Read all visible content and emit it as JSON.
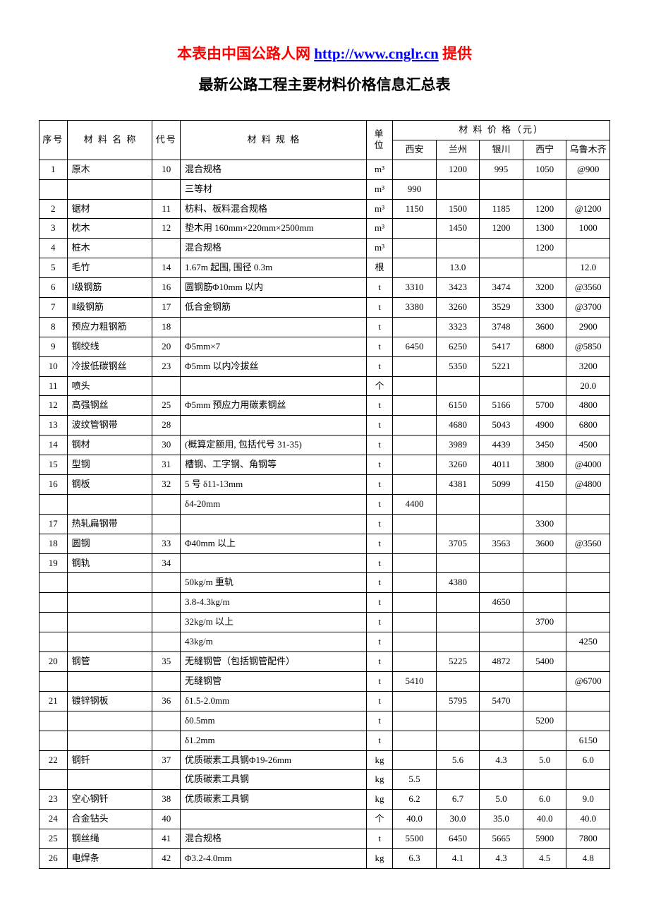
{
  "header": {
    "prefix": "本表由中国公路人网",
    "link": "http://www.cnglr.cn",
    "suffix": "提供",
    "subtitle": "最新公路工程主要材料价格信息汇总表"
  },
  "colors": {
    "title_red": "#ff0000",
    "title_link": "#0000ff",
    "text": "#000000",
    "border": "#000000",
    "background": "#ffffff"
  },
  "columns": {
    "seq": "序号",
    "name": "材 料 名 称",
    "code": "代号",
    "spec": "材 料 规 格",
    "unit": "单位",
    "price_group": "材 料 价 格（元）",
    "cities": [
      "西安",
      "兰州",
      "银川",
      "西宁",
      "乌鲁木齐"
    ]
  },
  "rows": [
    {
      "seq": "1",
      "name": "原木",
      "code": "10",
      "spec": "混合规格",
      "unit": "m³",
      "p": [
        "",
        "1200",
        "995",
        "1050",
        "@900"
      ]
    },
    {
      "seq": "",
      "name": "",
      "code": "",
      "spec": "三等材",
      "unit": "m³",
      "p": [
        "990",
        "",
        "",
        "",
        ""
      ]
    },
    {
      "seq": "2",
      "name": "锯材",
      "code": "11",
      "spec": "枋料、板料混合规格",
      "unit": "m³",
      "p": [
        "1150",
        "1500",
        "1185",
        "1200",
        "@1200"
      ]
    },
    {
      "seq": "3",
      "name": "枕木",
      "code": "12",
      "spec": "垫木用 160mm×220mm×2500mm",
      "unit": "m³",
      "p": [
        "",
        "1450",
        "1200",
        "1300",
        "1000"
      ]
    },
    {
      "seq": "4",
      "name": "桩木",
      "code": "",
      "spec": "混合规格",
      "unit": "m³",
      "p": [
        "",
        "",
        "",
        "1200",
        ""
      ]
    },
    {
      "seq": "5",
      "name": "毛竹",
      "code": "14",
      "spec": "1.67m 起围, 围径 0.3m",
      "unit": "根",
      "p": [
        "",
        "13.0",
        "",
        "",
        "12.0"
      ]
    },
    {
      "seq": "6",
      "name": "Ⅰ级钢筋",
      "code": "16",
      "spec": "圆钢筋Φ10mm 以内",
      "unit": "t",
      "p": [
        "3310",
        "3423",
        "3474",
        "3200",
        "@3560"
      ]
    },
    {
      "seq": "7",
      "name": "Ⅱ级钢筋",
      "code": "17",
      "spec": "低合金钢筋",
      "unit": "t",
      "p": [
        "3380",
        "3260",
        "3529",
        "3300",
        "@3700"
      ]
    },
    {
      "seq": "8",
      "name": "预应力粗钢筋",
      "code": "18",
      "spec": "",
      "unit": "t",
      "p": [
        "",
        "3323",
        "3748",
        "3600",
        "2900"
      ]
    },
    {
      "seq": "9",
      "name": "钢绞线",
      "code": "20",
      "spec": "Φ5mm×7",
      "unit": "t",
      "p": [
        "6450",
        "6250",
        "5417",
        "6800",
        "@5850"
      ]
    },
    {
      "seq": "10",
      "name": "冷拔低碳钢丝",
      "code": "23",
      "spec": "Φ5mm 以内冷拔丝",
      "unit": "t",
      "p": [
        "",
        "5350",
        "5221",
        "",
        "3200"
      ]
    },
    {
      "seq": "11",
      "name": "喷头",
      "code": "",
      "spec": "",
      "unit": "个",
      "p": [
        "",
        "",
        "",
        "",
        "20.0"
      ]
    },
    {
      "seq": "12",
      "name": "高强钢丝",
      "code": "25",
      "spec": "Φ5mm 预应力用碳素钢丝",
      "unit": "t",
      "p": [
        "",
        "6150",
        "5166",
        "5700",
        "4800"
      ]
    },
    {
      "seq": "13",
      "name": "波纹管钢带",
      "code": "28",
      "spec": "",
      "unit": "t",
      "p": [
        "",
        "4680",
        "5043",
        "4900",
        "6800"
      ]
    },
    {
      "seq": "14",
      "name": "钢材",
      "code": "30",
      "spec": "(概算定额用, 包括代号 31-35)",
      "unit": "t",
      "p": [
        "",
        "3989",
        "4439",
        "3450",
        "4500"
      ]
    },
    {
      "seq": "15",
      "name": "型钢",
      "code": "31",
      "spec": "槽钢、工字钢、角钢等",
      "unit": "t",
      "p": [
        "",
        "3260",
        "4011",
        "3800",
        "@4000"
      ]
    },
    {
      "seq": "16",
      "name": "钢板",
      "code": "32",
      "spec": "5 号 δ11-13mm",
      "unit": "t",
      "p": [
        "",
        "4381",
        "5099",
        "4150",
        "@4800"
      ]
    },
    {
      "seq": "",
      "name": "",
      "code": "",
      "spec": "δ4-20mm",
      "unit": "t",
      "p": [
        "4400",
        "",
        "",
        "",
        ""
      ]
    },
    {
      "seq": "17",
      "name": "热轧扁钢带",
      "code": "",
      "spec": "",
      "unit": "t",
      "p": [
        "",
        "",
        "",
        "3300",
        ""
      ]
    },
    {
      "seq": "18",
      "name": "圆钢",
      "code": "33",
      "spec": "Φ40mm 以上",
      "unit": "t",
      "p": [
        "",
        "3705",
        "3563",
        "3600",
        "@3560"
      ]
    },
    {
      "seq": "19",
      "name": "钢轨",
      "code": "34",
      "spec": "",
      "unit": "t",
      "p": [
        "",
        "",
        "",
        "",
        ""
      ]
    },
    {
      "seq": "",
      "name": "",
      "code": "",
      "spec": "50kg/m 重轨",
      "unit": "t",
      "p": [
        "",
        "4380",
        "",
        "",
        ""
      ]
    },
    {
      "seq": "",
      "name": "",
      "code": "",
      "spec": "3.8-4.3kg/m",
      "unit": "t",
      "p": [
        "",
        "",
        "4650",
        "",
        ""
      ]
    },
    {
      "seq": "",
      "name": "",
      "code": "",
      "spec": "32kg/m 以上",
      "unit": "t",
      "p": [
        "",
        "",
        "",
        "3700",
        ""
      ]
    },
    {
      "seq": "",
      "name": "",
      "code": "",
      "spec": "43kg/m",
      "unit": "t",
      "p": [
        "",
        "",
        "",
        "",
        "4250"
      ]
    },
    {
      "seq": "20",
      "name": "钢管",
      "code": "35",
      "spec": "无缝钢管（包括钢管配件）",
      "unit": "t",
      "p": [
        "",
        "5225",
        "4872",
        "5400",
        ""
      ]
    },
    {
      "seq": "",
      "name": "",
      "code": "",
      "spec": "无缝钢管",
      "unit": "t",
      "p": [
        "5410",
        "",
        "",
        "",
        "@6700"
      ]
    },
    {
      "seq": "21",
      "name": "镀锌钢板",
      "code": "36",
      "spec": "δ1.5-2.0mm",
      "unit": "t",
      "p": [
        "",
        "5795",
        "5470",
        "",
        ""
      ]
    },
    {
      "seq": "",
      "name": "",
      "code": "",
      "spec": "δ0.5mm",
      "unit": "t",
      "p": [
        "",
        "",
        "",
        "5200",
        ""
      ]
    },
    {
      "seq": "",
      "name": "",
      "code": "",
      "spec": "δ1.2mm",
      "unit": "t",
      "p": [
        "",
        "",
        "",
        "",
        "6150"
      ]
    },
    {
      "seq": "22",
      "name": "钢钎",
      "code": "37",
      "spec": "优质碳素工具钢Φ19-26mm",
      "unit": "kg",
      "p": [
        "",
        "5.6",
        "4.3",
        "5.0",
        "6.0"
      ]
    },
    {
      "seq": "",
      "name": "",
      "code": "",
      "spec": "优质碳素工具钢",
      "unit": "kg",
      "p": [
        "5.5",
        "",
        "",
        "",
        ""
      ]
    },
    {
      "seq": "23",
      "name": "空心钢钎",
      "code": "38",
      "spec": "优质碳素工具钢",
      "unit": "kg",
      "p": [
        "6.2",
        "6.7",
        "5.0",
        "6.0",
        "9.0"
      ]
    },
    {
      "seq": "24",
      "name": "合金钻头",
      "code": "40",
      "spec": "",
      "unit": "个",
      "p": [
        "40.0",
        "30.0",
        "35.0",
        "40.0",
        "40.0"
      ]
    },
    {
      "seq": "25",
      "name": "钢丝绳",
      "code": "41",
      "spec": "混合规格",
      "unit": "t",
      "p": [
        "5500",
        "6450",
        "5665",
        "5900",
        "7800"
      ]
    },
    {
      "seq": "26",
      "name": "电焊条",
      "code": "42",
      "spec": "Φ3.2-4.0mm",
      "unit": "kg",
      "p": [
        "6.3",
        "4.1",
        "4.3",
        "4.5",
        "4.8"
      ]
    }
  ]
}
